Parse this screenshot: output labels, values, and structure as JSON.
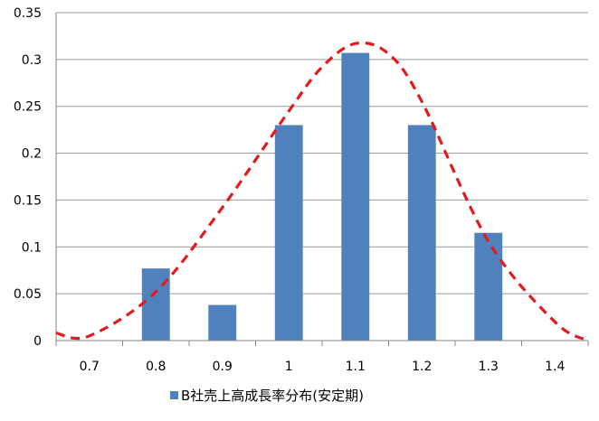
{
  "chart_data": {
    "type": "bar",
    "categories": [
      "0.7",
      "0.8",
      "0.9",
      "1",
      "1.1",
      "1.2",
      "1.3",
      "1.4"
    ],
    "series": [
      {
        "name": "B社売上高成長率分布(安定期)",
        "values": [
          0,
          0.077,
          0.038,
          0.23,
          0.307,
          0.23,
          0.115,
          0
        ],
        "color": "#4f81bd"
      }
    ],
    "overlay_curve": {
      "type": "line",
      "style": "dashed",
      "color": "#e31a1c",
      "points": [
        {
          "x": 0.65,
          "y": 0.008
        },
        {
          "x": 0.7,
          "y": 0.005
        },
        {
          "x": 0.8,
          "y": 0.052
        },
        {
          "x": 0.9,
          "y": 0.142
        },
        {
          "x": 1.0,
          "y": 0.245
        },
        {
          "x": 1.05,
          "y": 0.292
        },
        {
          "x": 1.1,
          "y": 0.317
        },
        {
          "x": 1.15,
          "y": 0.306
        },
        {
          "x": 1.2,
          "y": 0.255
        },
        {
          "x": 1.3,
          "y": 0.106
        },
        {
          "x": 1.4,
          "y": 0.02
        },
        {
          "x": 1.45,
          "y": 0.0
        }
      ]
    },
    "ylim": [
      0,
      0.35
    ],
    "yticks": [
      "0",
      "0.05",
      "0.1",
      "0.15",
      "0.2",
      "0.25",
      "0.3",
      "0.35"
    ],
    "grid": true,
    "legend": {
      "position": "bottom"
    }
  }
}
